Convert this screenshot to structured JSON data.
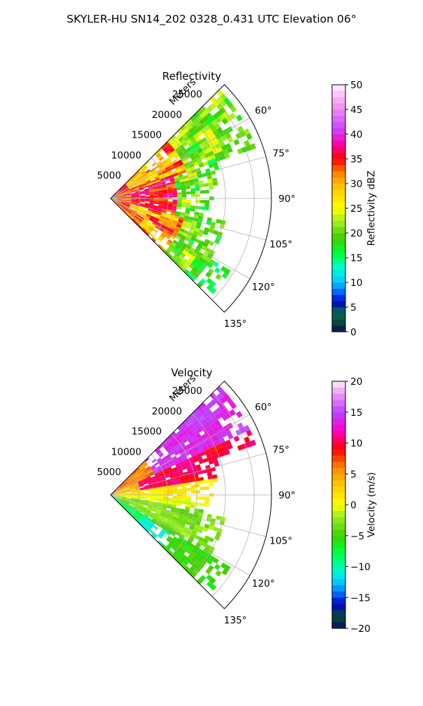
{
  "figure": {
    "suptitle": "SKYLER-HU  SN14_202  0328_0.431 UTC Elevation 06°"
  },
  "chart_data": [
    {
      "type": "heatmap",
      "subtype": "polar-sector (PPI)",
      "title": "Reflectivity",
      "radial_label": "Meters",
      "radial_ticks": [
        5000,
        10000,
        15000,
        20000,
        25000
      ],
      "radial_tick_labels": [
        "5000",
        "10000",
        "15000",
        "20000",
        "25000"
      ],
      "angle_ticks": [
        60,
        75,
        90,
        105,
        120,
        135
      ],
      "angle_tick_labels": [
        "60°",
        "75°",
        "90°",
        "105°",
        "120°",
        "135°"
      ],
      "angle_range_deg": [
        45,
        135
      ],
      "radial_range_m": [
        0,
        28000
      ],
      "grid": true,
      "colorbar": {
        "label": "Reflectivity dBZ",
        "range": [
          0,
          50
        ],
        "ticks": [
          0,
          5,
          10,
          15,
          20,
          25,
          30,
          35,
          40,
          45,
          50
        ],
        "tick_labels": [
          "0",
          "5",
          "10",
          "15",
          "20",
          "25",
          "30",
          "35",
          "40",
          "45",
          "50"
        ]
      },
      "colormap_stops": [
        {
          "v": 0,
          "c": "#0a0f5a"
        },
        {
          "v": 2,
          "c": "#0b4a3a"
        },
        {
          "v": 4,
          "c": "#0a6a4a"
        },
        {
          "v": 6,
          "c": "#0000cc"
        },
        {
          "v": 8,
          "c": "#0060ff"
        },
        {
          "v": 10,
          "c": "#00c8ff"
        },
        {
          "v": 13,
          "c": "#00ffd0"
        },
        {
          "v": 16,
          "c": "#00ff30"
        },
        {
          "v": 19,
          "c": "#44cc00"
        },
        {
          "v": 22,
          "c": "#99ee22"
        },
        {
          "v": 25,
          "c": "#ffff00"
        },
        {
          "v": 29,
          "c": "#ffcc00"
        },
        {
          "v": 32,
          "c": "#ff8800"
        },
        {
          "v": 35,
          "c": "#ff0000"
        },
        {
          "v": 38,
          "c": "#ff00aa"
        },
        {
          "v": 41,
          "c": "#cc44ff"
        },
        {
          "v": 45,
          "c": "#ee88ee"
        },
        {
          "v": 50,
          "c": "#ffeeff"
        }
      ],
      "field_summary": [
        {
          "angles_deg": [
            45,
            70
          ],
          "r_km": [
            0,
            14
          ],
          "dBZ": 33
        },
        {
          "angles_deg": [
            45,
            70
          ],
          "r_km": [
            14,
            27
          ],
          "dBZ": 22
        },
        {
          "angles_deg": [
            70,
            105
          ],
          "r_km": [
            0,
            12
          ],
          "dBZ": 35
        },
        {
          "angles_deg": [
            70,
            105
          ],
          "r_km": [
            12,
            20
          ],
          "dBZ": 20
        },
        {
          "angles_deg": [
            105,
            135
          ],
          "r_km": [
            0,
            14
          ],
          "dBZ": 32
        },
        {
          "angles_deg": [
            105,
            135
          ],
          "r_km": [
            14,
            24
          ],
          "dBZ": 20
        }
      ]
    },
    {
      "type": "heatmap",
      "subtype": "polar-sector (PPI)",
      "title": "Velocity",
      "radial_label": "Meters",
      "radial_ticks": [
        5000,
        10000,
        15000,
        20000,
        25000
      ],
      "radial_tick_labels": [
        "5000",
        "10000",
        "15000",
        "20000",
        "25000"
      ],
      "angle_ticks": [
        60,
        75,
        90,
        105,
        120,
        135
      ],
      "angle_tick_labels": [
        "60°",
        "75°",
        "90°",
        "105°",
        "120°",
        "135°"
      ],
      "angle_range_deg": [
        45,
        135
      ],
      "radial_range_m": [
        0,
        28000
      ],
      "grid": true,
      "colorbar": {
        "label": "Velocity (m/s)",
        "range": [
          -20,
          20
        ],
        "ticks": [
          -20,
          -15,
          -10,
          -5,
          0,
          5,
          10,
          15,
          20
        ],
        "tick_labels": [
          "−20",
          "−15",
          "−10",
          "−5",
          "0",
          "5",
          "10",
          "15",
          "20"
        ]
      },
      "colormap_stops": [
        {
          "v": -20,
          "c": "#0a0f5a"
        },
        {
          "v": -18,
          "c": "#0b4a3a"
        },
        {
          "v": -16,
          "c": "#0000cc"
        },
        {
          "v": -14,
          "c": "#0080ff"
        },
        {
          "v": -12,
          "c": "#00e0ff"
        },
        {
          "v": -10,
          "c": "#00ffaa"
        },
        {
          "v": -7,
          "c": "#00ff20"
        },
        {
          "v": -5,
          "c": "#44cc00"
        },
        {
          "v": -2,
          "c": "#99ee22"
        },
        {
          "v": 0,
          "c": "#ffff00"
        },
        {
          "v": 3,
          "c": "#ffcc00"
        },
        {
          "v": 6,
          "c": "#ff8800"
        },
        {
          "v": 9,
          "c": "#ff0000"
        },
        {
          "v": 12,
          "c": "#ff00cc"
        },
        {
          "v": 15,
          "c": "#bb44ff"
        },
        {
          "v": 18,
          "c": "#ee99ee"
        },
        {
          "v": 20,
          "c": "#ffeeff"
        }
      ],
      "field_summary": [
        {
          "angles_deg": [
            45,
            65
          ],
          "r_km": [
            6,
            27
          ],
          "m_s": 14
        },
        {
          "angles_deg": [
            65,
            82
          ],
          "r_km": [
            4,
            20
          ],
          "m_s": 10
        },
        {
          "angles_deg": [
            82,
            100
          ],
          "r_km": [
            0,
            16
          ],
          "m_s": 2
        },
        {
          "angles_deg": [
            100,
            120
          ],
          "r_km": [
            0,
            18
          ],
          "m_s": -4
        },
        {
          "angles_deg": [
            120,
            135
          ],
          "r_km": [
            0,
            24
          ],
          "m_s": -6
        }
      ]
    }
  ]
}
